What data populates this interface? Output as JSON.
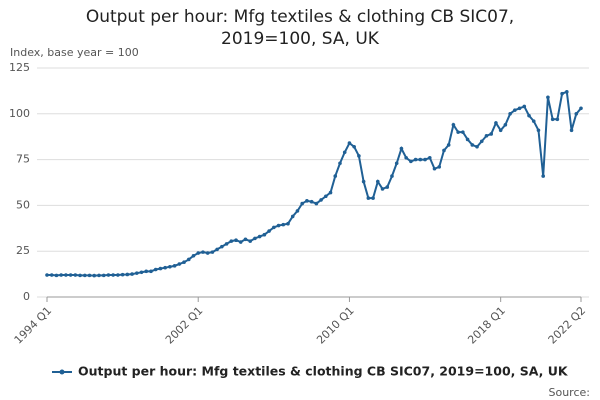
{
  "chart_data": {
    "type": "line",
    "title": "Output per hour: Mfg textiles & clothing CB SIC07, 2019=100, SA, UK",
    "y_label": "Index, base year = 100",
    "source": "Source:",
    "categories": [
      "1994 Q1",
      null,
      null,
      null,
      null,
      null,
      null,
      null,
      null,
      null,
      null,
      null,
      null,
      null,
      null,
      null,
      null,
      null,
      null,
      null,
      null,
      null,
      null,
      null,
      null,
      null,
      null,
      null,
      null,
      null,
      null,
      null,
      "2002 Q1",
      null,
      null,
      null,
      null,
      null,
      null,
      null,
      null,
      null,
      null,
      null,
      null,
      null,
      null,
      null,
      null,
      null,
      null,
      null,
      null,
      null,
      null,
      null,
      null,
      null,
      null,
      null,
      null,
      null,
      null,
      null,
      "2010 Q1",
      null,
      null,
      null,
      null,
      null,
      null,
      null,
      null,
      null,
      null,
      null,
      null,
      null,
      null,
      null,
      null,
      null,
      null,
      null,
      null,
      null,
      null,
      null,
      null,
      null,
      null,
      null,
      null,
      null,
      null,
      null,
      "2018 Q1",
      null,
      null,
      null,
      null,
      null,
      null,
      null,
      null,
      null,
      null,
      null,
      null,
      null,
      null,
      null,
      null,
      "2022 Q2"
    ],
    "series": [
      {
        "name": "Output per hour: Mfg textiles & clothing CB SIC07, 2019=100, SA, UK",
        "color": "#206095",
        "values": [
          12,
          12,
          11.8,
          12,
          12,
          12,
          12,
          11.8,
          11.8,
          11.8,
          11.7,
          11.8,
          11.8,
          12,
          12,
          12,
          12.2,
          12.3,
          12.5,
          13,
          13.5,
          14,
          14,
          15,
          15.5,
          16,
          16.5,
          17,
          18,
          19,
          20.5,
          22.5,
          24,
          24.5,
          24,
          24.5,
          26,
          27.5,
          29,
          30.5,
          31,
          30,
          31.5,
          30.5,
          32,
          33,
          34,
          36,
          38,
          39,
          39.5,
          40,
          44,
          47,
          51,
          52.5,
          52,
          51,
          53,
          55,
          57,
          66,
          73,
          79,
          84,
          82,
          77,
          63,
          54,
          54,
          63,
          59,
          60,
          66,
          73,
          81,
          76,
          74,
          75,
          75,
          75,
          76,
          70,
          71,
          80,
          83,
          94,
          90,
          90,
          86,
          83,
          82,
          85,
          88,
          89,
          95,
          91,
          94,
          100,
          102,
          103,
          104,
          99,
          96,
          91,
          66,
          109,
          97,
          97,
          111,
          112,
          91,
          100,
          103
        ]
      }
    ],
    "ylim": [
      0,
      125
    ],
    "yticks": [
      0,
      25,
      50,
      75,
      100,
      125
    ],
    "grid": true
  }
}
